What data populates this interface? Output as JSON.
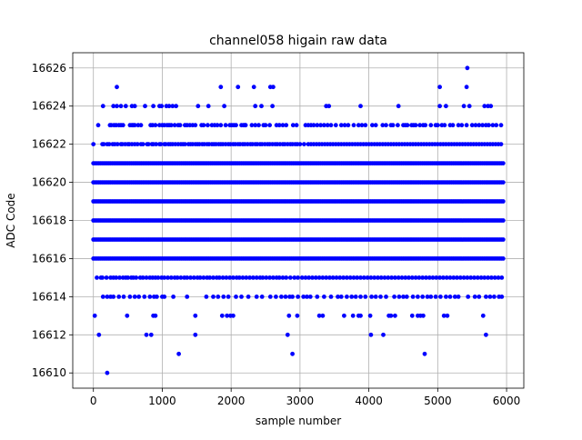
{
  "chart_data": {
    "type": "scatter",
    "title": "channel058 higain raw data",
    "xlabel": "sample number",
    "ylabel": "ADC Code",
    "xlim": [
      -300,
      6250
    ],
    "ylim": [
      16609.2,
      16626.8
    ],
    "xticks": [
      0,
      1000,
      2000,
      3000,
      4000,
      5000,
      6000
    ],
    "yticks": [
      16610,
      16612,
      16614,
      16616,
      16618,
      16620,
      16622,
      16624,
      16626
    ],
    "grid": true,
    "marker_color": "#0000ff",
    "n_samples": 5950,
    "series": [
      {
        "name": "",
        "dense_rows": [
          {
            "y": 16616,
            "x_range": [
              0,
              5950
            ]
          },
          {
            "y": 16617,
            "x_range": [
              0,
              5950
            ]
          },
          {
            "y": 16618,
            "x_range": [
              0,
              5950
            ]
          },
          {
            "y": 16619,
            "x_range": [
              0,
              5950
            ]
          },
          {
            "y": 16620,
            "x_range": [
              0,
              5950
            ]
          },
          {
            "y": 16621,
            "x_range": [
              0,
              5950
            ]
          }
        ],
        "rows": [
          {
            "y": 16622,
            "x": [
              0,
              130,
              150,
              200,
              230,
              280,
              310,
              350,
              400,
              420,
              460,
              500,
              520,
              560,
              600,
              640,
              690,
              720,
              780,
              800,
              850,
              870,
              910,
              960,
              980,
              1030,
              1050,
              1090,
              1120,
              1150,
              1190,
              1230,
              1270,
              1300,
              1330,
              1380,
              1410,
              1440,
              1480,
              1510,
              1540,
              1580,
              1610,
              1650,
              1680,
              1720,
              1750,
              1780,
              1820,
              1850,
              1880,
              1920,
              1960,
              1990,
              2030,
              2060,
              2100,
              2130,
              2170,
              2200,
              2240,
              2280,
              2310,
              2350,
              2380,
              2420,
              2450,
              2490,
              2530,
              2560,
              2600,
              2640,
              2670,
              2710,
              2750,
              2780,
              2820,
              2860,
              2890,
              2930,
              2960,
              3000,
              3060,
              3120,
              3160,
              3200,
              3240,
              3280,
              3320,
              3360,
              3400,
              3440,
              3480,
              3520,
              3560,
              3600,
              3640,
              3680,
              3720,
              3760,
              3800,
              3840,
              3880,
              3920,
              3960,
              4000,
              4040,
              4080,
              4120,
              4160,
              4200,
              4240,
              4280,
              4320,
              4360,
              4400,
              4440,
              4480,
              4520,
              4560,
              4600,
              4640,
              4680,
              4720,
              4760,
              4800,
              4840,
              4880,
              4920,
              4960,
              5000,
              5040,
              5080,
              5120,
              5160,
              5200,
              5240,
              5280,
              5320,
              5360,
              5400,
              5440,
              5480,
              5520,
              5560,
              5600,
              5640,
              5680,
              5720,
              5760,
              5800,
              5840,
              5880,
              5920
            ]
          },
          {
            "y": 16623,
            "x": [
              70,
              240,
              260,
              300,
              330,
              370,
              400,
              430,
              530,
              560,
              580,
              600,
              650,
              690,
              830,
              860,
              900,
              960,
              1000,
              1030,
              1070,
              1100,
              1130,
              1180,
              1230,
              1260,
              1330,
              1360,
              1400,
              1440,
              1480,
              1570,
              1600,
              1660,
              1720,
              1760,
              1800,
              1850,
              1920,
              1980,
              2010,
              2040,
              2070,
              2150,
              2180,
              2200,
              2210,
              2300,
              2350,
              2400,
              2470,
              2500,
              2560,
              2660,
              2700,
              2750,
              2800,
              2900,
              2950,
              3080,
              3120,
              3160,
              3200,
              3250,
              3300,
              3350,
              3400,
              3450,
              3520,
              3600,
              3650,
              3700,
              3780,
              3850,
              3900,
              3950,
              4050,
              4100,
              4200,
              4250,
              4320,
              4350,
              4420,
              4500,
              4530,
              4560,
              4620,
              4650,
              4680,
              4740,
              4790,
              4820,
              4900,
              4970,
              5000,
              5060,
              5100,
              5180,
              5220,
              5300,
              5350,
              5420,
              5500,
              5550,
              5600,
              5650,
              5700,
              5740,
              5800,
              5850,
              5920
            ]
          },
          {
            "y": 16624,
            "x": [
              140,
              290,
              340,
              400,
              470,
              560,
              600,
              750,
              870,
              960,
              990,
              1060,
              1100,
              1150,
              1200,
              1520,
              1670,
              1900,
              2350,
              2440,
              2600,
              3380,
              3420,
              3880,
              4430,
              5030,
              5120,
              5380,
              5460,
              5680,
              5730,
              5770
            ]
          },
          {
            "y": 16625,
            "x": [
              340,
              1850,
              2100,
              2330,
              2570,
              2610,
              5030,
              5420
            ]
          },
          {
            "y": 16626,
            "x": [
              5430
            ]
          },
          {
            "y": 16615,
            "x": [
              50,
              110,
              130,
              190,
              250,
              290,
              330,
              380,
              430,
              470,
              500,
              550,
              580,
              620,
              680,
              720,
              770,
              820,
              860,
              900,
              940,
              990,
              1030,
              1080,
              1130,
              1180,
              1220,
              1270,
              1320,
              1360,
              1410,
              1460,
              1510,
              1550,
              1600,
              1650,
              1690,
              1740,
              1790,
              1830,
              1880,
              1930,
              1980,
              2030,
              2080,
              2120,
              2170,
              2220,
              2270,
              2320,
              2370,
              2420,
              2460,
              2510,
              2560,
              2610,
              2660,
              2700,
              2750,
              2800,
              2860,
              2920,
              2970,
              3030,
              3080,
              3130,
              3180,
              3230,
              3280,
              3330,
              3380,
              3430,
              3480,
              3530,
              3580,
              3630,
              3680,
              3730,
              3780,
              3830,
              3880,
              3930,
              3980,
              4030,
              4080,
              4130,
              4180,
              4230,
              4280,
              4330,
              4380,
              4430,
              4480,
              4530,
              4580,
              4630,
              4680,
              4730,
              4780,
              4830,
              4880,
              4930,
              4980,
              5030,
              5080,
              5130,
              5180,
              5230,
              5280,
              5330,
              5380,
              5430,
              5480,
              5530,
              5580,
              5630,
              5680,
              5730,
              5780,
              5830,
              5880,
              5930
            ]
          },
          {
            "y": 16614,
            "x": [
              140,
              200,
              250,
              290,
              370,
              440,
              530,
              600,
              660,
              740,
              820,
              880,
              920,
              1000,
              1030,
              1160,
              1360,
              1640,
              1740,
              1810,
              1890,
              1960,
              2070,
              2150,
              2250,
              2370,
              2450,
              2570,
              2650,
              2730,
              2790,
              2850,
              2890,
              2970,
              3050,
              3100,
              3150,
              3250,
              3350,
              3450,
              3550,
              3600,
              3680,
              3750,
              3810,
              3880,
              3950,
              4040,
              4100,
              4170,
              4250,
              4370,
              4440,
              4500,
              4550,
              4640,
              4710,
              4780,
              4850,
              4900,
              4970,
              5040,
              5120,
              5180,
              5250,
              5300,
              5440,
              5540,
              5600,
              5700,
              5760,
              5820,
              5890,
              5930
            ]
          },
          {
            "y": 16613,
            "x": [
              20,
              490,
              870,
              900,
              1480,
              1870,
              1940,
              1990,
              2030,
              2840,
              2960,
              3280,
              3330,
              3640,
              3770,
              3850,
              3880,
              4020,
              4290,
              4320,
              4380,
              4630,
              4710,
              4750,
              4790,
              5090,
              5140,
              5660
            ]
          },
          {
            "y": 16612,
            "x": [
              80,
              770,
              840,
              1480,
              2820,
              4030,
              4210,
              5700
            ]
          },
          {
            "y": 16611,
            "x": [
              1240,
              2890,
              4810
            ]
          },
          {
            "y": 16610,
            "x": [
              200
            ]
          }
        ]
      }
    ]
  }
}
